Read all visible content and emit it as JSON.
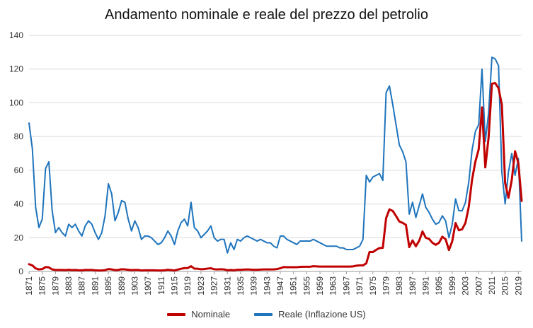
{
  "chart_data": {
    "type": "line",
    "title": "Andamento nominale e reale del prezzo del petrolio",
    "xlabel": "",
    "ylabel": "",
    "xlim": [
      1871,
      2020
    ],
    "ylim": [
      0,
      140
    ],
    "x_ticks": [
      "1871",
      "1875",
      "1879",
      "1883",
      "1887",
      "1891",
      "1895",
      "1899",
      "1903",
      "1907",
      "1911",
      "1915",
      "1919",
      "1923",
      "1927",
      "1931",
      "1935",
      "1939",
      "1943",
      "1947",
      "1951",
      "1955",
      "1959",
      "1963",
      "1967",
      "1971",
      "1975",
      "1979",
      "1983",
      "1987",
      "1991",
      "1995",
      "1999",
      "2003",
      "2007",
      "2011",
      "2015",
      "2019"
    ],
    "y_ticks": [
      "0",
      "20",
      "40",
      "60",
      "80",
      "100",
      "120",
      "140"
    ],
    "grid": "horizontal",
    "legend_position": "bottom",
    "series": [
      {
        "name": "Nominale",
        "color": "#c00000",
        "points": [
          [
            1871,
            4.3
          ],
          [
            1872,
            3.6
          ],
          [
            1873,
            1.8
          ],
          [
            1874,
            1.2
          ],
          [
            1875,
            1.4
          ],
          [
            1876,
            2.6
          ],
          [
            1877,
            2.4
          ],
          [
            1878,
            1.2
          ],
          [
            1879,
            0.9
          ],
          [
            1880,
            0.9
          ],
          [
            1881,
            0.9
          ],
          [
            1882,
            0.8
          ],
          [
            1883,
            1.0
          ],
          [
            1884,
            0.8
          ],
          [
            1885,
            0.9
          ],
          [
            1886,
            0.7
          ],
          [
            1887,
            0.7
          ],
          [
            1888,
            0.9
          ],
          [
            1889,
            0.9
          ],
          [
            1890,
            0.9
          ],
          [
            1891,
            0.7
          ],
          [
            1892,
            0.6
          ],
          [
            1893,
            0.6
          ],
          [
            1894,
            0.8
          ],
          [
            1895,
            1.4
          ],
          [
            1896,
            1.2
          ],
          [
            1897,
            0.8
          ],
          [
            1898,
            0.9
          ],
          [
            1899,
            1.3
          ],
          [
            1900,
            1.2
          ],
          [
            1901,
            1.0
          ],
          [
            1902,
            0.8
          ],
          [
            1903,
            0.9
          ],
          [
            1904,
            0.9
          ],
          [
            1905,
            0.6
          ],
          [
            1906,
            0.7
          ],
          [
            1907,
            0.7
          ],
          [
            1908,
            0.7
          ],
          [
            1909,
            0.7
          ],
          [
            1910,
            0.6
          ],
          [
            1911,
            0.6
          ],
          [
            1912,
            0.7
          ],
          [
            1913,
            1.0
          ],
          [
            1914,
            0.8
          ],
          [
            1915,
            0.6
          ],
          [
            1916,
            1.1
          ],
          [
            1917,
            1.6
          ],
          [
            1918,
            2.0
          ],
          [
            1919,
            2.0
          ],
          [
            1920,
            3.1
          ],
          [
            1921,
            1.7
          ],
          [
            1922,
            1.6
          ],
          [
            1923,
            1.3
          ],
          [
            1924,
            1.4
          ],
          [
            1925,
            1.7
          ],
          [
            1926,
            1.9
          ],
          [
            1927,
            1.3
          ],
          [
            1928,
            1.2
          ],
          [
            1929,
            1.3
          ],
          [
            1930,
            1.2
          ],
          [
            1931,
            0.7
          ],
          [
            1932,
            0.9
          ],
          [
            1933,
            0.7
          ],
          [
            1934,
            1.0
          ],
          [
            1935,
            1.0
          ],
          [
            1936,
            1.1
          ],
          [
            1937,
            1.2
          ],
          [
            1938,
            1.1
          ],
          [
            1939,
            1.0
          ],
          [
            1940,
            1.0
          ],
          [
            1941,
            1.1
          ],
          [
            1942,
            1.2
          ],
          [
            1943,
            1.2
          ],
          [
            1944,
            1.2
          ],
          [
            1945,
            1.2
          ],
          [
            1946,
            1.4
          ],
          [
            1947,
            1.9
          ],
          [
            1948,
            2.6
          ],
          [
            1949,
            2.5
          ],
          [
            1950,
            2.5
          ],
          [
            1951,
            2.5
          ],
          [
            1952,
            2.5
          ],
          [
            1953,
            2.7
          ],
          [
            1954,
            2.8
          ],
          [
            1955,
            2.8
          ],
          [
            1956,
            2.8
          ],
          [
            1957,
            3.1
          ],
          [
            1958,
            3.0
          ],
          [
            1959,
            2.9
          ],
          [
            1960,
            2.9
          ],
          [
            1961,
            2.9
          ],
          [
            1962,
            2.9
          ],
          [
            1963,
            2.9
          ],
          [
            1964,
            2.9
          ],
          [
            1965,
            2.9
          ],
          [
            1966,
            2.9
          ],
          [
            1967,
            2.9
          ],
          [
            1968,
            2.9
          ],
          [
            1969,
            3.0
          ],
          [
            1970,
            3.4
          ],
          [
            1971,
            3.6
          ],
          [
            1972,
            3.6
          ],
          [
            1973,
            4.8
          ],
          [
            1974,
            11.6
          ],
          [
            1975,
            11.5
          ],
          [
            1976,
            12.8
          ],
          [
            1977,
            13.9
          ],
          [
            1978,
            14.0
          ],
          [
            1979,
            31.6
          ],
          [
            1980,
            36.8
          ],
          [
            1981,
            35.9
          ],
          [
            1982,
            32.9
          ],
          [
            1983,
            29.6
          ],
          [
            1984,
            28.8
          ],
          [
            1985,
            27.6
          ],
          [
            1986,
            14.4
          ],
          [
            1987,
            18.4
          ],
          [
            1988,
            14.9
          ],
          [
            1989,
            18.2
          ],
          [
            1990,
            23.7
          ],
          [
            1991,
            20.0
          ],
          [
            1992,
            19.3
          ],
          [
            1993,
            17.0
          ],
          [
            1994,
            15.8
          ],
          [
            1995,
            17.0
          ],
          [
            1996,
            20.6
          ],
          [
            1997,
            19.1
          ],
          [
            1998,
            12.7
          ],
          [
            1999,
            17.9
          ],
          [
            2000,
            28.7
          ],
          [
            2001,
            24.4
          ],
          [
            2002,
            25.0
          ],
          [
            2003,
            28.8
          ],
          [
            2004,
            38.3
          ],
          [
            2005,
            54.5
          ],
          [
            2006,
            65.1
          ],
          [
            2007,
            72.4
          ],
          [
            2008,
            97.3
          ],
          [
            2009,
            61.7
          ],
          [
            2010,
            79.5
          ],
          [
            2011,
            111.3
          ],
          [
            2012,
            111.7
          ],
          [
            2013,
            108.7
          ],
          [
            2014,
            98.9
          ],
          [
            2015,
            52.4
          ],
          [
            2016,
            43.7
          ],
          [
            2017,
            54.2
          ],
          [
            2018,
            71.3
          ],
          [
            2019,
            64.2
          ],
          [
            2020,
            41.8
          ]
        ]
      },
      {
        "name": "Reale (Inflazione US)",
        "color": "#1f74bd",
        "points": [
          [
            1871,
            88
          ],
          [
            1872,
            73
          ],
          [
            1873,
            38
          ],
          [
            1874,
            26
          ],
          [
            1875,
            31
          ],
          [
            1876,
            61
          ],
          [
            1877,
            65
          ],
          [
            1878,
            36
          ],
          [
            1879,
            23
          ],
          [
            1880,
            26
          ],
          [
            1881,
            23
          ],
          [
            1882,
            21
          ],
          [
            1883,
            28
          ],
          [
            1884,
            26
          ],
          [
            1885,
            28
          ],
          [
            1886,
            24
          ],
          [
            1887,
            21
          ],
          [
            1888,
            27
          ],
          [
            1889,
            30
          ],
          [
            1890,
            28
          ],
          [
            1891,
            23
          ],
          [
            1892,
            19
          ],
          [
            1893,
            23
          ],
          [
            1894,
            33
          ],
          [
            1895,
            52
          ],
          [
            1896,
            46
          ],
          [
            1897,
            30
          ],
          [
            1898,
            35
          ],
          [
            1899,
            42
          ],
          [
            1900,
            41
          ],
          [
            1901,
            31
          ],
          [
            1902,
            24
          ],
          [
            1903,
            30
          ],
          [
            1904,
            26
          ],
          [
            1905,
            19
          ],
          [
            1906,
            21
          ],
          [
            1907,
            21
          ],
          [
            1908,
            20
          ],
          [
            1909,
            18
          ],
          [
            1910,
            16
          ],
          [
            1911,
            17
          ],
          [
            1912,
            20
          ],
          [
            1913,
            24
          ],
          [
            1914,
            21
          ],
          [
            1915,
            16
          ],
          [
            1916,
            24
          ],
          [
            1917,
            29
          ],
          [
            1918,
            31
          ],
          [
            1919,
            27
          ],
          [
            1920,
            41
          ],
          [
            1921,
            26
          ],
          [
            1922,
            24
          ],
          [
            1923,
            20
          ],
          [
            1924,
            22
          ],
          [
            1925,
            24
          ],
          [
            1926,
            27
          ],
          [
            1927,
            20
          ],
          [
            1928,
            18
          ],
          [
            1929,
            19
          ],
          [
            1930,
            19
          ],
          [
            1931,
            11
          ],
          [
            1932,
            17
          ],
          [
            1933,
            13
          ],
          [
            1934,
            19
          ],
          [
            1935,
            18
          ],
          [
            1936,
            20
          ],
          [
            1937,
            21
          ],
          [
            1938,
            20
          ],
          [
            1939,
            19
          ],
          [
            1940,
            18
          ],
          [
            1941,
            19
          ],
          [
            1942,
            18
          ],
          [
            1943,
            17
          ],
          [
            1944,
            17
          ],
          [
            1945,
            15
          ],
          [
            1946,
            14
          ],
          [
            1947,
            21
          ],
          [
            1948,
            21
          ],
          [
            1949,
            19
          ],
          [
            1950,
            18
          ],
          [
            1951,
            17
          ],
          [
            1952,
            16
          ],
          [
            1953,
            18
          ],
          [
            1954,
            18
          ],
          [
            1955,
            18
          ],
          [
            1956,
            18
          ],
          [
            1957,
            19
          ],
          [
            1958,
            18
          ],
          [
            1959,
            17
          ],
          [
            1960,
            16
          ],
          [
            1961,
            15
          ],
          [
            1962,
            15
          ],
          [
            1963,
            15
          ],
          [
            1964,
            15
          ],
          [
            1965,
            14
          ],
          [
            1966,
            14
          ],
          [
            1967,
            13
          ],
          [
            1968,
            13
          ],
          [
            1969,
            13
          ],
          [
            1970,
            14
          ],
          [
            1971,
            15
          ],
          [
            1972,
            19
          ],
          [
            1973,
            57
          ],
          [
            1974,
            53
          ],
          [
            1975,
            56
          ],
          [
            1976,
            57
          ],
          [
            1977,
            58
          ],
          [
            1978,
            54
          ],
          [
            1979,
            106
          ],
          [
            1980,
            110
          ],
          [
            1981,
            99
          ],
          [
            1982,
            87
          ],
          [
            1983,
            75
          ],
          [
            1984,
            71
          ],
          [
            1985,
            65
          ],
          [
            1986,
            34
          ],
          [
            1987,
            41
          ],
          [
            1988,
            32
          ],
          [
            1989,
            39
          ],
          [
            1990,
            46
          ],
          [
            1991,
            38
          ],
          [
            1992,
            35
          ],
          [
            1993,
            31
          ],
          [
            1994,
            28
          ],
          [
            1995,
            29
          ],
          [
            1996,
            33
          ],
          [
            1997,
            30
          ],
          [
            1998,
            20
          ],
          [
            1999,
            28
          ],
          [
            2000,
            43
          ],
          [
            2001,
            36
          ],
          [
            2002,
            36
          ],
          [
            2003,
            41
          ],
          [
            2004,
            53
          ],
          [
            2005,
            72
          ],
          [
            2006,
            83
          ],
          [
            2007,
            87
          ],
          [
            2008,
            120
          ],
          [
            2009,
            77
          ],
          [
            2010,
            94
          ],
          [
            2011,
            127
          ],
          [
            2012,
            126
          ],
          [
            2013,
            122
          ],
          [
            2014,
            59
          ],
          [
            2015,
            40
          ],
          [
            2016,
            59
          ],
          [
            2017,
            70
          ],
          [
            2018,
            57
          ],
          [
            2019,
            67
          ],
          [
            2020,
            18
          ]
        ]
      }
    ]
  },
  "legend": {
    "items": [
      {
        "label": "Nominale",
        "color": "#c00000"
      },
      {
        "label": "Reale (Inflazione US)",
        "color": "#1f74bd"
      }
    ]
  }
}
